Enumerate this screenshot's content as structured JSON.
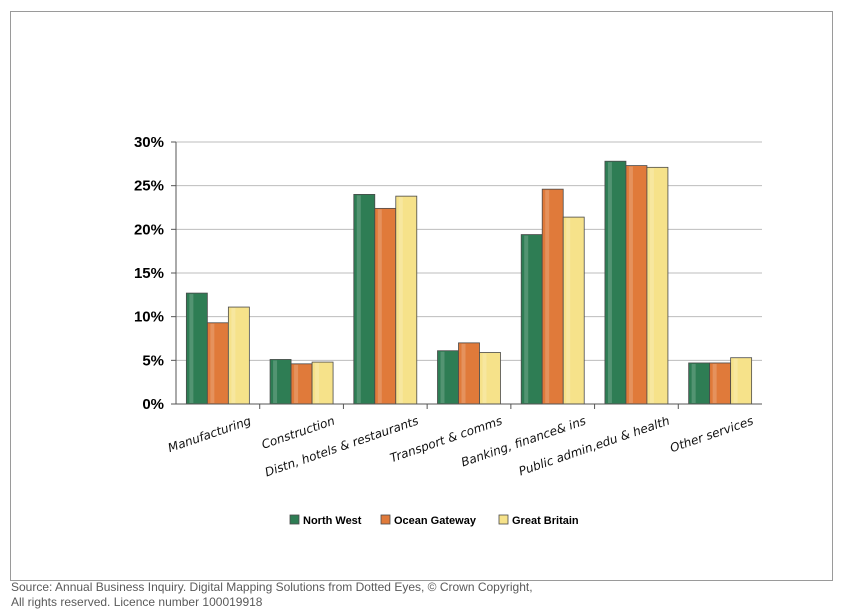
{
  "chart_data": {
    "type": "bar",
    "title": "",
    "xlabel": "",
    "ylabel": "",
    "ylim": [
      0,
      30
    ],
    "yticks": [
      "0%",
      "5%",
      "10%",
      "15%",
      "20%",
      "25%",
      "30%"
    ],
    "grid": true,
    "legend_position": "bottom",
    "categories": [
      "Manufacturing",
      "Construction",
      "Distn, hotels & restaurants",
      "Transport & comms",
      "Banking, finance& ins",
      "Public admin,edu & health",
      "Other services"
    ],
    "series": [
      {
        "name": "North West",
        "color": "#2e7d54",
        "values": [
          12.7,
          5.1,
          24.0,
          6.1,
          19.4,
          27.8,
          4.7
        ]
      },
      {
        "name": "Ocean Gateway",
        "color": "#e07a3a",
        "values": [
          9.3,
          4.6,
          22.4,
          7.0,
          24.6,
          27.3,
          4.7
        ]
      },
      {
        "name": "Great Britain",
        "color": "#f6e28a",
        "values": [
          11.1,
          4.8,
          23.8,
          5.9,
          21.4,
          27.1,
          5.3
        ]
      }
    ]
  },
  "source": {
    "line1": "Source: Annual Business Inquiry. Digital Mapping Solutions from Dotted Eyes, © Crown Copyright,",
    "line2": "All rights reserved. Licence number 100019918"
  }
}
